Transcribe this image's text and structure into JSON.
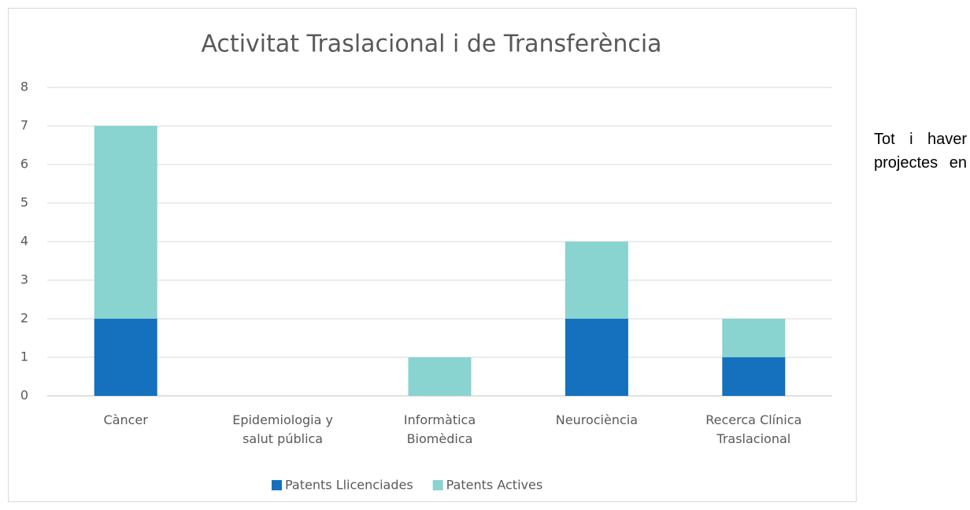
{
  "chart_data": {
    "type": "stacked_bar",
    "title": "Activitat Traslacional i de Transferència",
    "categories": [
      "Càncer",
      "Epidemiologia y salut pública",
      "Informàtica Biomèdica",
      "Neurociència",
      "Recerca Clínica Traslacional"
    ],
    "series": [
      {
        "name": "Patents Llicenciades",
        "color": "#1570bd",
        "values": [
          2,
          0,
          0,
          2,
          1
        ]
      },
      {
        "name": "Patents Actives",
        "color": "#89d3d1",
        "values": [
          5,
          0,
          1,
          2,
          1
        ]
      }
    ],
    "ylim": [
      0,
      8
    ],
    "yticks": [
      0,
      1,
      2,
      3,
      4,
      5,
      6,
      7,
      8
    ],
    "grid": true,
    "legend": "bottom"
  },
  "side_text": "Tot i haver projectes en"
}
